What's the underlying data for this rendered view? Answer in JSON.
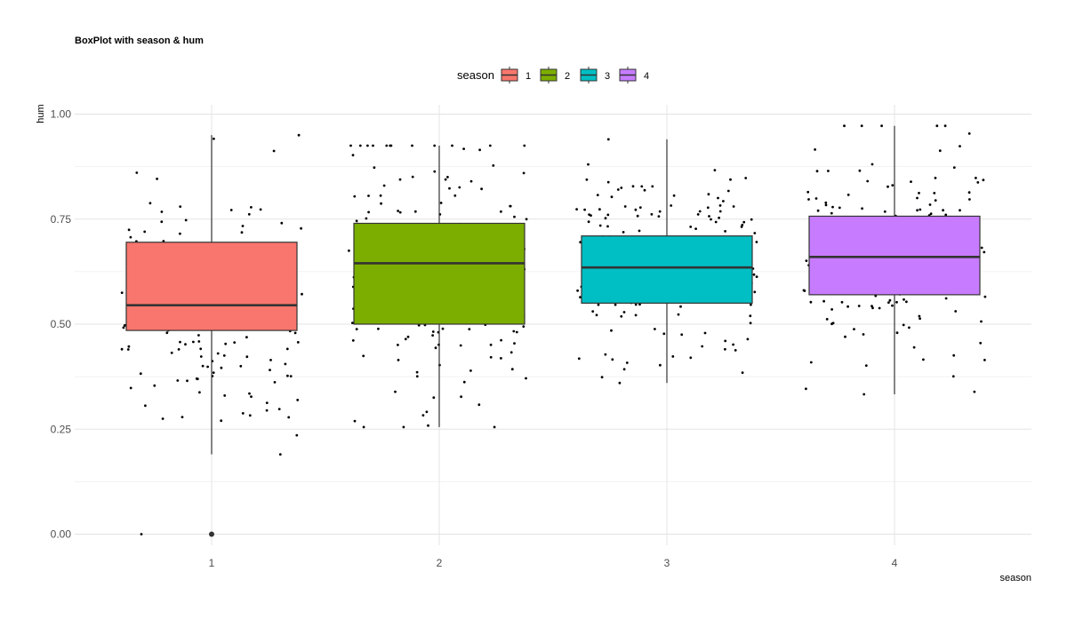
{
  "chart_data": {
    "type": "box",
    "title": "BoxPlot with season  &  hum",
    "xlabel": "season",
    "ylabel": "hum",
    "ylim": [
      0,
      1.03
    ],
    "yticks": [
      "0.00",
      "0.25",
      "0.50",
      "0.75",
      "1.00"
    ],
    "categories": [
      "1",
      "2",
      "3",
      "4"
    ],
    "grid": true,
    "legend": {
      "title": "season",
      "position": "top",
      "entries": [
        "1",
        "2",
        "3",
        "4"
      ]
    },
    "colors": {
      "1": "#F8766D",
      "2": "#7CAE00",
      "3": "#00BFC4",
      "4": "#C77CFF"
    },
    "boxes": [
      {
        "category": "1",
        "min": 0.19,
        "q1": 0.485,
        "median": 0.545,
        "q3": 0.695,
        "max": 0.95,
        "outliers": [
          0.0
        ]
      },
      {
        "category": "2",
        "min": 0.255,
        "q1": 0.5,
        "median": 0.645,
        "q3": 0.74,
        "max": 0.925,
        "outliers": []
      },
      {
        "category": "3",
        "min": 0.36,
        "q1": 0.55,
        "median": 0.635,
        "q3": 0.71,
        "max": 0.94,
        "outliers": []
      },
      {
        "category": "4",
        "min": 0.333,
        "q1": 0.57,
        "median": 0.66,
        "q3": 0.757,
        "max": 0.972,
        "outliers": []
      }
    ],
    "points_per_group": [
      180,
      184,
      188,
      178
    ]
  }
}
